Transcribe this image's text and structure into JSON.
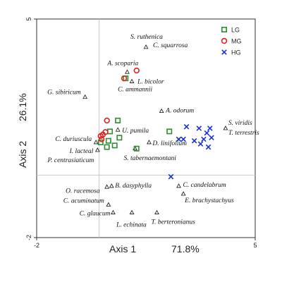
{
  "chart_data": {
    "type": "scatter",
    "title": "",
    "x_axis": {
      "label": "Axis 1",
      "pct": "71.8%",
      "range": [
        -2,
        5
      ],
      "tick_labels": [
        "-2",
        "5"
      ]
    },
    "y_axis": {
      "label": "Axis 2",
      "pct": "26.1%",
      "range": [
        -2,
        5
      ],
      "tick_labels": [
        "-2",
        "5"
      ]
    },
    "grid": false,
    "legend_position": "top-right",
    "legend": [
      {
        "name": "LG",
        "marker": "square",
        "color": "#2e8b2e"
      },
      {
        "name": "MG",
        "marker": "circle",
        "color": "#e02020"
      },
      {
        "name": "HG",
        "marker": "x",
        "color": "#1a2fd6"
      }
    ],
    "series": [
      {
        "name": "LG",
        "marker": "square",
        "color": "#2e8b2e",
        "points": [
          [
            0.85,
            3.1
          ],
          [
            0.6,
            1.75
          ],
          [
            0.35,
            1.4
          ],
          [
            0.3,
            1.1
          ],
          [
            0.65,
            1.2
          ],
          [
            0.05,
            1.05
          ],
          [
            0.25,
            0.9
          ],
          [
            0.5,
            0.95
          ],
          [
            1.2,
            0.85
          ],
          [
            2.25,
            1.4
          ]
        ]
      },
      {
        "name": "MG",
        "marker": "circle",
        "color": "#e02020",
        "points": [
          [
            1.2,
            3.35
          ],
          [
            0.8,
            3.1
          ],
          [
            0.25,
            1.75
          ],
          [
            0.2,
            1.38
          ],
          [
            0.12,
            1.3
          ],
          [
            0.05,
            1.25
          ],
          [
            0.08,
            1.15
          ]
        ]
      },
      {
        "name": "HG",
        "marker": "x",
        "color": "#1a2fd6",
        "points": [
          [
            2.8,
            1.55
          ],
          [
            3.2,
            1.5
          ],
          [
            3.55,
            1.5
          ],
          [
            3.45,
            1.35
          ],
          [
            3.6,
            1.2
          ],
          [
            3.35,
            1.15
          ],
          [
            3.05,
            1.1
          ],
          [
            2.7,
            1.15
          ],
          [
            2.55,
            1.15
          ],
          [
            3.25,
            1.0
          ],
          [
            3.5,
            0.9
          ],
          [
            2.3,
            -0.05
          ]
        ]
      },
      {
        "name": "species",
        "marker": "triangle",
        "color": "#111111",
        "points": [
          {
            "label": "S. ruthenica",
            "x": 1.5,
            "y": 4.1
          },
          {
            "label": "C. squarrosa",
            "x": 1.5,
            "y": 4.1
          },
          {
            "label": "A. scoparia",
            "x": 0.9,
            "y": 3.3
          },
          {
            "label": "L. bicolor",
            "x": 1.05,
            "y": 3.0
          },
          {
            "label": "C. ammannii",
            "x": 1.05,
            "y": 3.0
          },
          {
            "label": "G. sibiricum",
            "x": -0.45,
            "y": 2.5
          },
          {
            "label": "A. odorum",
            "x": 2.0,
            "y": 2.05
          },
          {
            "label": "S. viridis",
            "x": 4.05,
            "y": 1.5
          },
          {
            "label": "T. terrestris",
            "x": 4.05,
            "y": 1.5
          },
          {
            "label": "U. pumila",
            "x": 0.6,
            "y": 1.45
          },
          {
            "label": "D. linifolium",
            "x": 1.6,
            "y": 1.05
          },
          {
            "label": "C. duriuscula",
            "x": -0.1,
            "y": 1.05
          },
          {
            "label": "I. lacteal",
            "x": -0.05,
            "y": 0.8
          },
          {
            "label": "P. centrasiaticum",
            "x": -0.05,
            "y": 0.8
          },
          {
            "label": "S. tabernaemontani",
            "x": 1.15,
            "y": 0.85
          },
          {
            "label": "B. dasyphylla",
            "x": 0.4,
            "y": -0.35
          },
          {
            "label": "C. candelabrum",
            "x": 2.55,
            "y": -0.35
          },
          {
            "label": "O. racemosa",
            "x": 0.25,
            "y": -0.38
          },
          {
            "label": "E. brachystachyus",
            "x": 2.7,
            "y": -0.6
          },
          {
            "label": "C. acuminatum",
            "x": 0.3,
            "y": -0.95
          },
          {
            "label": "T. berteronianus",
            "x": 1.85,
            "y": -1.2
          },
          {
            "label": "C. glaucum",
            "x": 0.45,
            "y": -1.2
          },
          {
            "label": "L. echinata",
            "x": 1.05,
            "y": -1.2
          }
        ]
      }
    ]
  }
}
